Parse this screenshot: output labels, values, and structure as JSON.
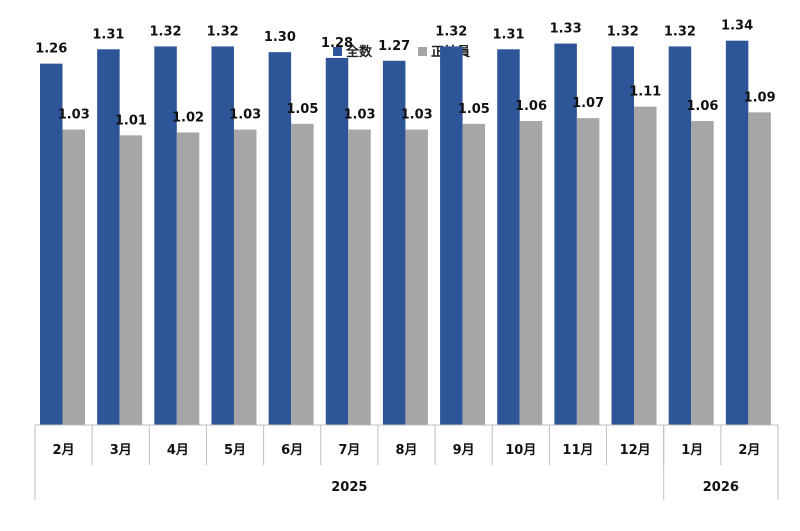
{
  "chart_data": {
    "type": "bar",
    "title": "",
    "xlabel": "",
    "ylabel": "",
    "categories": [
      "2月",
      "3月",
      "4月",
      "5月",
      "6月",
      "7月",
      "8月",
      "9月",
      "10月",
      "11月",
      "12月",
      "1月",
      "2月"
    ],
    "year_groups": [
      {
        "label": "2025",
        "count": 11
      },
      {
        "label": "2026",
        "count": 2
      }
    ],
    "series": [
      {
        "name": "全数",
        "color": "#2e5597",
        "values": [
          1.26,
          1.31,
          1.32,
          1.32,
          1.3,
          1.28,
          1.27,
          1.32,
          1.31,
          1.33,
          1.32,
          1.32,
          1.34
        ]
      },
      {
        "name": "正社員",
        "color": "#a6a6a6",
        "values": [
          1.03,
          1.01,
          1.02,
          1.03,
          1.05,
          1.03,
          1.03,
          1.05,
          1.06,
          1.07,
          1.11,
          1.06,
          1.09
        ]
      }
    ],
    "ylim": [
      0,
      1.44
    ],
    "value_format": "2 decimals",
    "grid": false,
    "legend": "top-center"
  }
}
